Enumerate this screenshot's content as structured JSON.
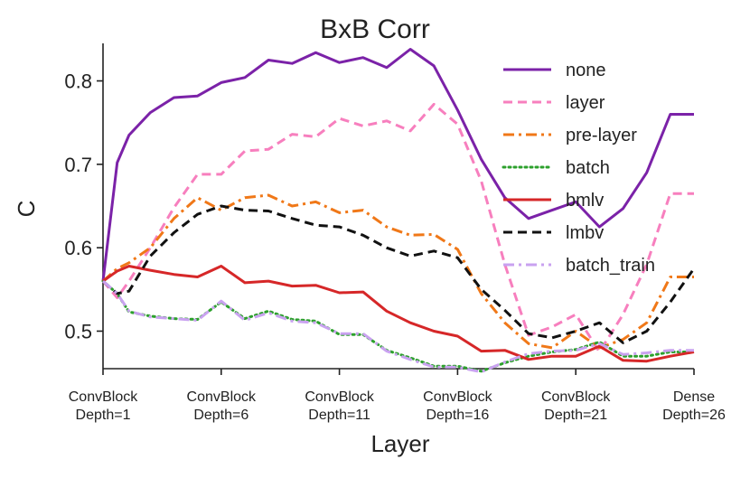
{
  "chart_data": {
    "type": "line",
    "title": "BxB Corr",
    "xlabel": "Layer",
    "ylabel": "C",
    "xlim": [
      1,
      26
    ],
    "ylim": [
      0.455,
      0.845
    ],
    "yticks": [
      0.5,
      0.6,
      0.7,
      0.8
    ],
    "ytick_labels": [
      "0.5",
      "0.6",
      "0.7",
      "0.8"
    ],
    "xticks": [
      {
        "x": 1,
        "line1": "ConvBlock",
        "line2": "Depth=1"
      },
      {
        "x": 6,
        "line1": "ConvBlock",
        "line2": "Depth=6"
      },
      {
        "x": 11,
        "line1": "ConvBlock",
        "line2": "Depth=11"
      },
      {
        "x": 16,
        "line1": "ConvBlock",
        "line2": "Depth=16"
      },
      {
        "x": 21,
        "line1": "ConvBlock",
        "line2": "Depth=21"
      },
      {
        "x": 26,
        "line1": "Dense",
        "line2": "Depth=26"
      }
    ],
    "legend_position": "top-right",
    "x": [
      1,
      1.6,
      2.1,
      3,
      4,
      5,
      6,
      7,
      8,
      9,
      10,
      11,
      12,
      13,
      14,
      15,
      16,
      17,
      18,
      19,
      20,
      21,
      22,
      23,
      24,
      25,
      26
    ],
    "series": [
      {
        "name": "none",
        "color": "#7b22a8",
        "dash": "solid",
        "values": [
          0.56,
          0.702,
          0.735,
          0.762,
          0.78,
          0.782,
          0.798,
          0.804,
          0.825,
          0.821,
          0.834,
          0.822,
          0.828,
          0.816,
          0.838,
          0.818,
          0.765,
          0.706,
          0.66,
          0.635,
          0.645,
          0.655,
          0.625,
          0.647,
          0.69,
          0.76,
          0.76
        ]
      },
      {
        "name": "layer",
        "color": "#f77fbe",
        "dash": "dashed",
        "values": [
          0.56,
          0.54,
          0.56,
          0.6,
          0.648,
          0.688,
          0.688,
          0.716,
          0.718,
          0.736,
          0.733,
          0.755,
          0.746,
          0.752,
          0.74,
          0.772,
          0.748,
          0.68,
          0.58,
          0.495,
          0.505,
          0.52,
          0.475,
          0.52,
          0.58,
          0.665,
          0.665
        ]
      },
      {
        "name": "pre-layer",
        "color": "#f07818",
        "dash": "dashdot",
        "values": [
          0.56,
          0.575,
          0.582,
          0.6,
          0.635,
          0.66,
          0.645,
          0.66,
          0.663,
          0.65,
          0.655,
          0.642,
          0.645,
          0.625,
          0.615,
          0.616,
          0.598,
          0.545,
          0.51,
          0.485,
          0.48,
          0.5,
          0.48,
          0.49,
          0.51,
          0.565,
          0.565
        ]
      },
      {
        "name": "batch",
        "color": "#2ca02c",
        "dash": "dotted",
        "values": [
          0.56,
          0.545,
          0.523,
          0.518,
          0.515,
          0.514,
          0.535,
          0.515,
          0.524,
          0.514,
          0.512,
          0.496,
          0.496,
          0.477,
          0.468,
          0.458,
          0.458,
          0.452,
          0.462,
          0.47,
          0.475,
          0.478,
          0.487,
          0.47,
          0.47,
          0.475,
          0.475
        ]
      },
      {
        "name": "bmlv",
        "color": "#d62728",
        "dash": "solid",
        "values": [
          0.56,
          0.572,
          0.578,
          0.573,
          0.568,
          0.565,
          0.578,
          0.558,
          0.56,
          0.554,
          0.555,
          0.546,
          0.547,
          0.524,
          0.51,
          0.5,
          0.494,
          0.476,
          0.477,
          0.466,
          0.47,
          0.47,
          0.482,
          0.465,
          0.464,
          0.47,
          0.475
        ]
      },
      {
        "name": "lmbv",
        "color": "#111111",
        "dash": "dashed",
        "values": [
          0.56,
          0.545,
          0.548,
          0.59,
          0.618,
          0.64,
          0.65,
          0.645,
          0.644,
          0.635,
          0.627,
          0.625,
          0.615,
          0.6,
          0.59,
          0.596,
          0.588,
          0.55,
          0.525,
          0.497,
          0.492,
          0.5,
          0.51,
          0.486,
          0.5,
          0.535,
          0.575
        ]
      },
      {
        "name": "batch_train",
        "color": "#c9a2f0",
        "dash": "dashdot",
        "values": [
          0.56,
          0.545,
          0.524,
          0.517,
          0.515,
          0.513,
          0.536,
          0.513,
          0.522,
          0.512,
          0.51,
          0.497,
          0.497,
          0.476,
          0.466,
          0.457,
          0.457,
          0.451,
          0.463,
          0.473,
          0.476,
          0.477,
          0.485,
          0.472,
          0.474,
          0.477,
          0.477
        ]
      }
    ]
  }
}
